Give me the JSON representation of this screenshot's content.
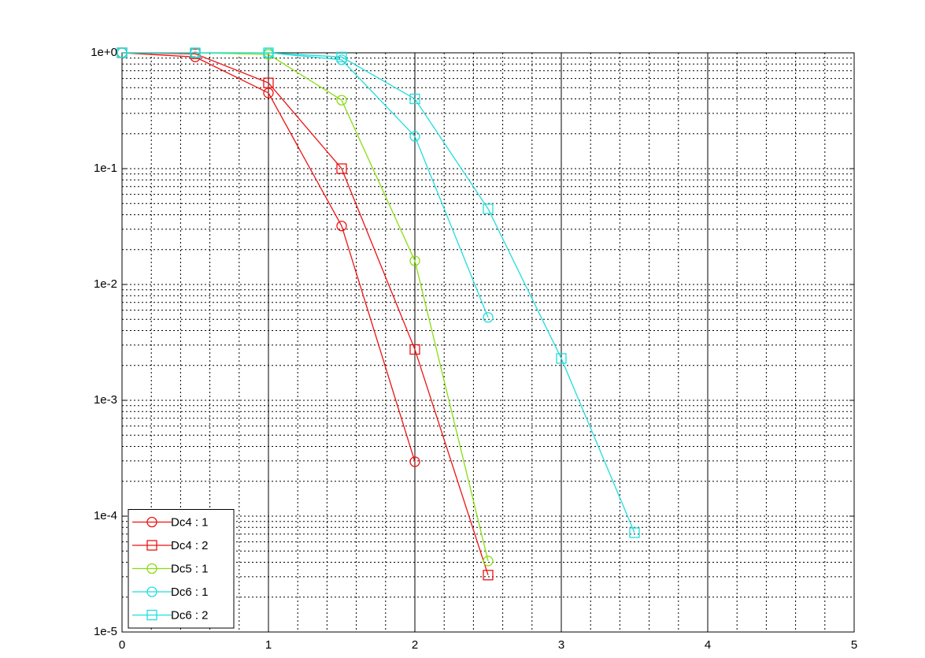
{
  "chart_data": {
    "type": "line",
    "ylog": true,
    "grid": true,
    "minor_grid": true,
    "legend": "lower left",
    "x": [
      0,
      0.5,
      1,
      1.5,
      2,
      2.5,
      3,
      3.5
    ],
    "xlim": [
      0,
      5
    ],
    "xticks": [
      0,
      1,
      2,
      3,
      4,
      5
    ],
    "ylim": [
      1e-05,
      1
    ],
    "yticks": [
      {
        "value": 1e-05,
        "label": "1e-5"
      },
      {
        "value": 0.0001,
        "label": "1e-4"
      },
      {
        "value": 0.001,
        "label": "1e-3"
      },
      {
        "value": 0.01,
        "label": "1e-2"
      },
      {
        "value": 0.1,
        "label": "1e-1"
      },
      {
        "value": 1,
        "label": "1e+0"
      }
    ],
    "series": [
      {
        "name": "Dc4 : 1",
        "color": "#ee1111",
        "marker": "circle",
        "values": [
          1,
          0.92,
          0.45,
          0.032,
          0.000295,
          null,
          null,
          null
        ]
      },
      {
        "name": "Dc4 : 2",
        "color": "#ee1111",
        "marker": "square",
        "values": [
          1,
          0.98,
          0.55,
          0.1,
          0.00275,
          3.1e-05,
          null,
          null
        ]
      },
      {
        "name": "Dc5 : 1",
        "color": "#88dd11",
        "marker": "circle",
        "values": [
          1,
          1,
          0.97,
          0.39,
          0.016,
          4.1e-05,
          null,
          null
        ]
      },
      {
        "name": "Dc6 : 1",
        "color": "#22dddd",
        "marker": "circle",
        "values": [
          1,
          1,
          1,
          0.87,
          0.19,
          0.0052,
          null,
          null
        ]
      },
      {
        "name": "Dc6 : 2",
        "color": "#22dddd",
        "marker": "square",
        "values": [
          1,
          1,
          1,
          0.92,
          0.4,
          0.045,
          0.0023,
          7.2e-05
        ]
      }
    ]
  }
}
